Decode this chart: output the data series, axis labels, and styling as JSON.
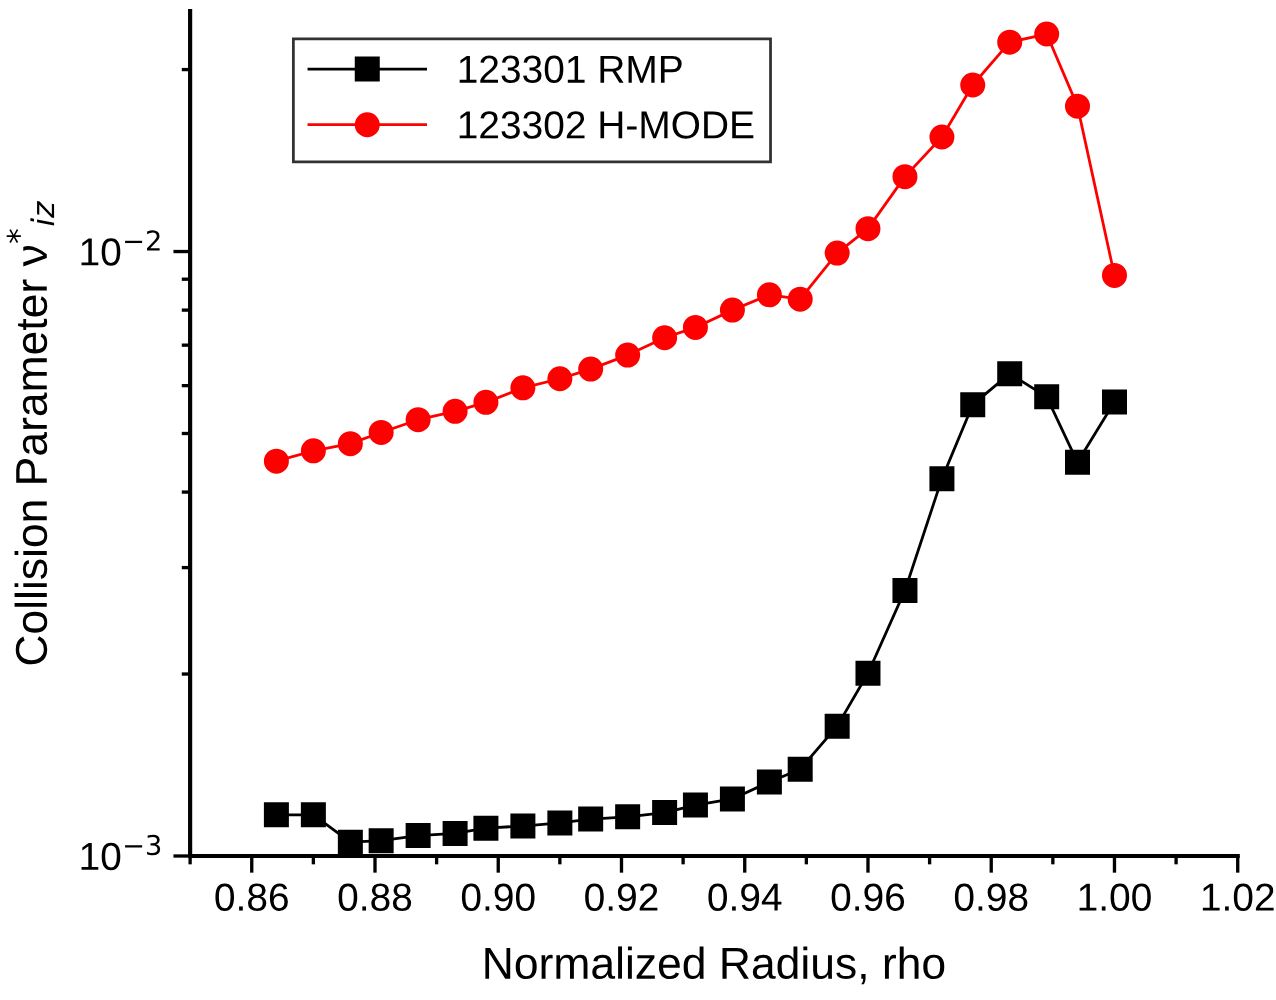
{
  "chart_data": {
    "type": "line",
    "xlabel": "Normalized Radius, rho",
    "ylabel": "Collision Parameter ν$^{*}$$_{iz}$",
    "x": [
      0.864,
      0.87,
      0.876,
      0.881,
      0.887,
      0.893,
      0.898,
      0.904,
      0.91,
      0.915,
      0.921,
      0.927,
      0.932,
      0.938,
      0.944,
      0.949,
      0.955,
      0.96,
      0.966,
      0.972,
      0.977,
      0.983,
      0.989,
      0.994,
      1.0
    ],
    "series": [
      {
        "name": "123301 RMP",
        "color": "#000000",
        "marker": "square",
        "values": [
          0.00117,
          0.00117,
          0.001054,
          0.00106,
          0.001081,
          0.00109,
          0.001112,
          0.001121,
          0.001134,
          0.001151,
          0.001161,
          0.00118,
          0.001214,
          0.001243,
          0.001326,
          0.001392,
          0.00164,
          0.002006,
          0.00275,
          0.00421,
          0.00558,
          0.00628,
          0.00575,
          0.00448,
          0.00564
        ]
      },
      {
        "name": "123302 H-MODE",
        "color": "#ff0000",
        "marker": "circle",
        "values": [
          0.0045,
          0.00468,
          0.00481,
          0.00502,
          0.00527,
          0.00544,
          0.00563,
          0.00595,
          0.00616,
          0.00639,
          0.00674,
          0.0072,
          0.00749,
          0.008,
          0.00848,
          0.00834,
          0.00994,
          0.01091,
          0.0133,
          0.01547,
          0.01886,
          0.0222,
          0.0229,
          0.0174,
          0.00913
        ]
      }
    ],
    "log": "y",
    "xlim": [
      0.85,
      1.02
    ],
    "ylim": [
      0.001,
      0.025
    ],
    "xticks": [
      {
        "value": 0.86,
        "label": "0.86"
      },
      {
        "value": 0.88,
        "label": "0.88"
      },
      {
        "value": 0.9,
        "label": "0.90"
      },
      {
        "value": 0.92,
        "label": "0.92"
      },
      {
        "value": 0.94,
        "label": "0.94"
      },
      {
        "value": 0.96,
        "label": "0.96"
      },
      {
        "value": 0.98,
        "label": "0.98"
      },
      {
        "value": 1.0,
        "label": "1.00"
      },
      {
        "value": 1.02,
        "label": "1.02"
      }
    ],
    "yticks": [
      {
        "value": 0.001,
        "label": "10$^{−3}$"
      },
      {
        "value": 0.01,
        "label": "10$^{−2}$"
      }
    ],
    "legend": "top left",
    "grid": false,
    "line_style": "solid"
  }
}
